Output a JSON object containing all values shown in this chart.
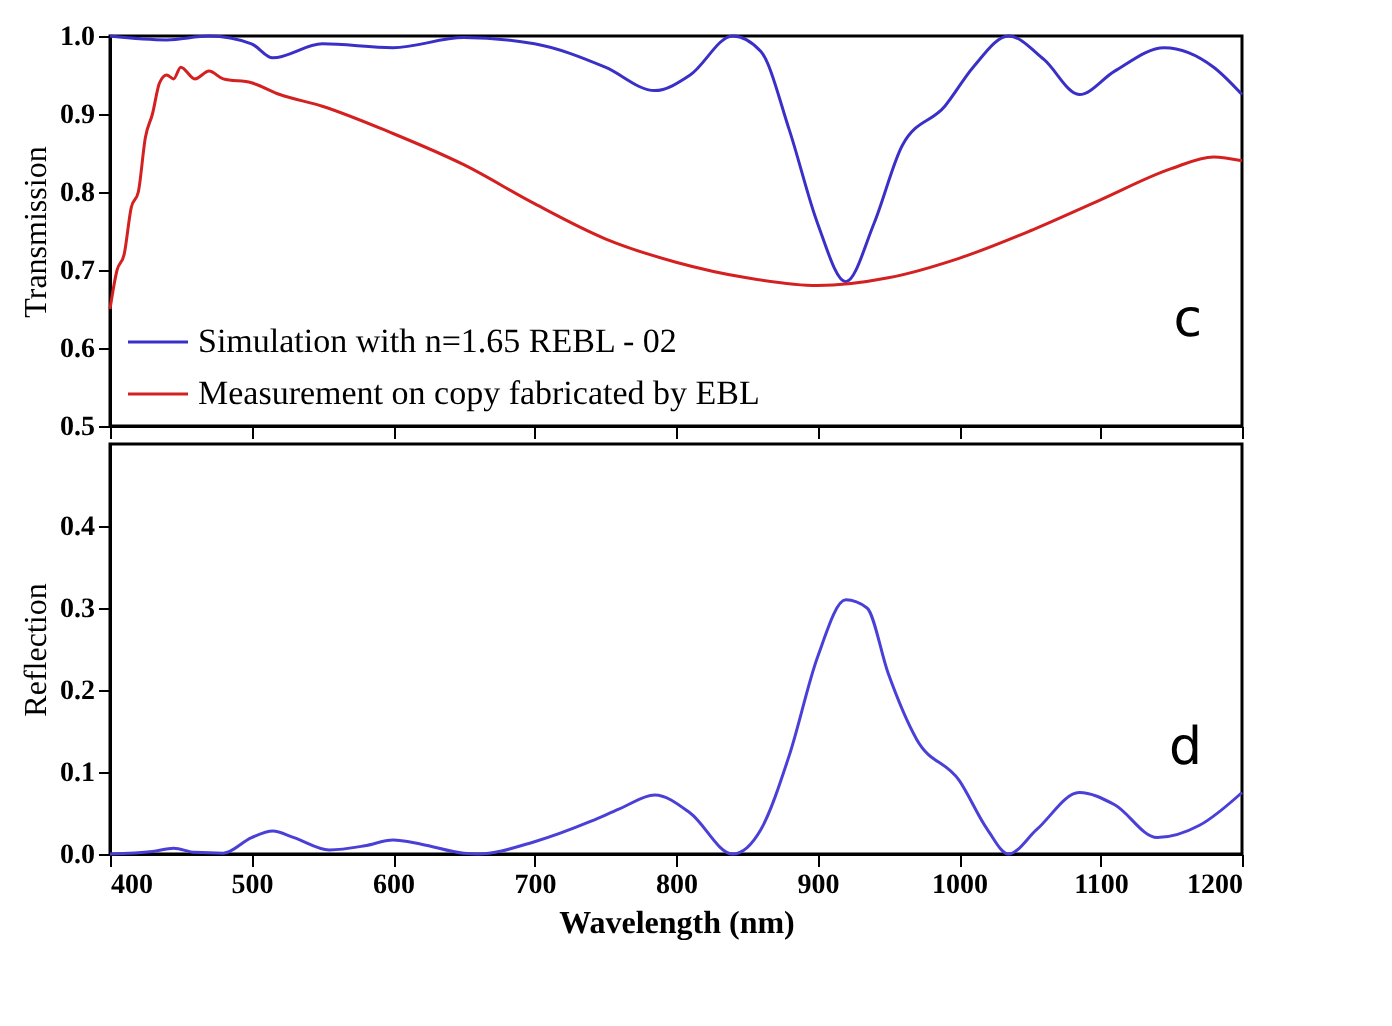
{
  "chart_data": [
    {
      "type": "line",
      "ylabel": "Transmission",
      "xlim": [
        400,
        1200
      ],
      "xticks": [
        400,
        500,
        600,
        700,
        800,
        900,
        1000,
        1100,
        1200
      ],
      "ylim": [
        0.5,
        1.0
      ],
      "yticks": [
        0.5,
        0.6,
        0.7,
        0.8,
        0.9,
        {
          "value": 1,
          "label": "1.0"
        }
      ],
      "tick_labels": "y",
      "grid": false,
      "legend": "bottom left",
      "annotations": [
        "c"
      ],
      "series": [
        {
          "name": "Simulation with n=1.65 REBL - 02",
          "color": "#3a30c8",
          "x": [
            400,
            440,
            470,
            500,
            515,
            550,
            600,
            650,
            700,
            750,
            785,
            810,
            840,
            860,
            880,
            900,
            920,
            940,
            960,
            990,
            1010,
            1035,
            1060,
            1085,
            1110,
            1145,
            1180,
            1200
          ],
          "values": [
            1.0,
            0.995,
            1.0,
            0.99,
            0.972,
            0.99,
            0.985,
            0.998,
            0.99,
            0.96,
            0.93,
            0.95,
            1.0,
            0.98,
            0.88,
            0.76,
            0.685,
            0.76,
            0.86,
            0.91,
            0.96,
            1.0,
            0.97,
            0.925,
            0.955,
            0.985,
            0.96,
            0.925
          ]
        },
        {
          "name": "Measurement on copy fabricated by EBL",
          "color": "#d42020",
          "x": [
            400,
            405,
            410,
            415,
            420,
            425,
            430,
            435,
            440,
            445,
            450,
            460,
            470,
            480,
            500,
            520,
            550,
            600,
            650,
            700,
            750,
            800,
            850,
            900,
            950,
            1000,
            1050,
            1100,
            1150,
            1180,
            1200
          ],
          "values": [
            0.65,
            0.7,
            0.72,
            0.78,
            0.8,
            0.87,
            0.9,
            0.94,
            0.95,
            0.945,
            0.96,
            0.945,
            0.955,
            0.945,
            0.94,
            0.925,
            0.91,
            0.875,
            0.835,
            0.785,
            0.74,
            0.71,
            0.69,
            0.68,
            0.69,
            0.715,
            0.75,
            0.79,
            0.83,
            0.845,
            0.84
          ]
        }
      ]
    },
    {
      "type": "line",
      "xlabel": "Wavelength (nm)",
      "ylabel": "Reflection",
      "xlim": [
        400,
        1200
      ],
      "ylim": [
        0.0,
        0.5
      ],
      "xticks": [
        400,
        500,
        600,
        700,
        800,
        900,
        1000,
        1100,
        1200
      ],
      "yticks": [
        {
          "value": 0,
          "label": "0.0"
        },
        0.1,
        0.2,
        0.3,
        0.4
      ],
      "grid": false,
      "annotations": [
        "d"
      ],
      "series": [
        {
          "color": "#4a40d8",
          "x": [
            400,
            430,
            445,
            460,
            480,
            500,
            515,
            530,
            555,
            580,
            600,
            620,
            650,
            660,
            700,
            740,
            760,
            785,
            810,
            840,
            860,
            880,
            900,
            920,
            935,
            950,
            970,
            1000,
            1020,
            1035,
            1055,
            1085,
            1110,
            1140,
            1170,
            1200
          ],
          "values": [
            0,
            0.003,
            0.007,
            0.002,
            0.001,
            0.02,
            0.028,
            0.02,
            0.005,
            0.01,
            0.017,
            0.012,
            0.001,
            0,
            0.015,
            0.04,
            0.055,
            0.072,
            0.05,
            0,
            0.03,
            0.12,
            0.24,
            0.31,
            0.3,
            0.22,
            0.14,
            0.09,
            0.03,
            0,
            0.03,
            0.075,
            0.06,
            0.02,
            0.035,
            0.075
          ]
        }
      ]
    }
  ]
}
